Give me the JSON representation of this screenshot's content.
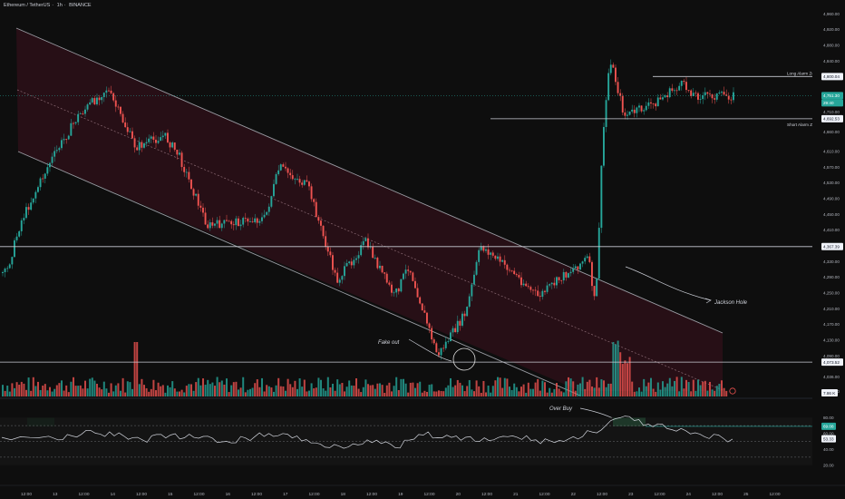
{
  "header": {
    "symbol": "Ethereum / TetherUS",
    "timeframe": "1h",
    "exchange": "BINANCE"
  },
  "colors": {
    "background": "#0e0e0e",
    "bull": "#26a69a",
    "bear": "#ef5350",
    "channel_fill": "#2a0f17",
    "line": "#c9ccd4",
    "rsi": "#d1d4dc",
    "rsi_fill": "#1f3b2b",
    "label_green": "#26a69a"
  },
  "price_axis": {
    "ticks": [
      "4,960.00",
      "4,920.00",
      "4,880.00",
      "4,840.00",
      "4,800.04",
      "4,751.30",
      "4,710.00",
      "4,692.53",
      "4,660.00",
      "4,610.00",
      "4,570.00",
      "4,530.00",
      "4,490.00",
      "4,450.00",
      "4,410.00",
      "4,367.39",
      "4,330.00",
      "4,290.00",
      "4,250.00",
      "4,210.00",
      "4,170.00",
      "4,130.00",
      "4,090.00",
      "4,073.52",
      "4,036.00",
      "4,000.00"
    ],
    "current_price": "4,751.30",
    "countdown": "29:40",
    "volume_label": "7.86 K"
  },
  "rsi_axis": {
    "ticks": [
      "80.00",
      "69.08",
      "60.00",
      "53.33",
      "40.00",
      "20.00"
    ]
  },
  "time_axis": [
    "12:00",
    "13",
    "12:00",
    "14",
    "12:00",
    "15",
    "12:00",
    "16",
    "12:00",
    "17",
    "12:00",
    "18",
    "12:00",
    "19",
    "12:00",
    "20",
    "12:00",
    "21",
    "12:00",
    "22",
    "12:00",
    "23",
    "12:00",
    "24",
    "12:00",
    "25",
    "12:00"
  ],
  "annotations": {
    "long_alarm": "Long Alarm Zone",
    "short_alarm": "Short Alarm Zone",
    "jackson_hole": "Jackson Hole",
    "fake_out": "Fake out",
    "over_buy": "Over Buy"
  },
  "chart_data": {
    "type": "candlestick",
    "symbol": "Ethereum / TetherUS",
    "interval": "1h",
    "exchange": "BINANCE",
    "y_range": [
      4000,
      4960
    ],
    "levels": [
      {
        "label": "Long Alarm Zone",
        "price": 4800.04
      },
      {
        "label": "Short Alarm Zone",
        "price": 4692.53
      },
      {
        "price": 4367.39
      },
      {
        "price": 4073.52
      }
    ],
    "last_price": 4751.3,
    "close_path": [
      {
        "t": "12 06:00",
        "close": 4300
      },
      {
        "t": "12 12:00",
        "close": 4430
      },
      {
        "t": "13 00:00",
        "close": 4580
      },
      {
        "t": "13 12:00",
        "close": 4700
      },
      {
        "t": "14 00:00",
        "close": 4770
      },
      {
        "t": "14 12:00",
        "close": 4620
      },
      {
        "t": "15 00:00",
        "close": 4650
      },
      {
        "t": "15 06:00",
        "close": 4600
      },
      {
        "t": "15 18:00",
        "close": 4420
      },
      {
        "t": "16 06:00",
        "close": 4430
      },
      {
        "t": "16 18:00",
        "close": 4440
      },
      {
        "t": "17 00:00",
        "close": 4570
      },
      {
        "t": "17 12:00",
        "close": 4520
      },
      {
        "t": "18 00:00",
        "close": 4280
      },
      {
        "t": "18 12:00",
        "close": 4380
      },
      {
        "t": "19 00:00",
        "close": 4240
      },
      {
        "t": "19 06:00",
        "close": 4320
      },
      {
        "t": "19 18:00",
        "close": 4090
      },
      {
        "t": "20 06:00",
        "close": 4200
      },
      {
        "t": "20 12:00",
        "close": 4370
      },
      {
        "t": "21 00:00",
        "close": 4310
      },
      {
        "t": "21 12:00",
        "close": 4240
      },
      {
        "t": "22 00:00",
        "close": 4300
      },
      {
        "t": "22 09:00",
        "close": 4340
      },
      {
        "t": "22 12:00",
        "close": 4210
      },
      {
        "t": "22 15:00",
        "close": 4640
      },
      {
        "t": "22 18:00",
        "close": 4850
      },
      {
        "t": "23 00:00",
        "close": 4700
      },
      {
        "t": "23 12:00",
        "close": 4730
      },
      {
        "t": "24 00:00",
        "close": 4780
      },
      {
        "t": "24 06:00",
        "close": 4751.3
      }
    ],
    "volume_last": "7.86 K",
    "rsi": {
      "range": [
        0,
        100
      ],
      "value": 53.33,
      "levels": [
        80,
        69.08,
        60,
        53.33,
        40,
        20
      ],
      "path": [
        [
          0,
          55
        ],
        [
          2,
          52
        ],
        [
          3,
          64
        ],
        [
          4,
          57
        ],
        [
          5,
          52
        ],
        [
          6,
          58
        ],
        [
          7,
          54
        ],
        [
          8,
          50
        ],
        [
          9,
          56
        ],
        [
          10,
          60
        ],
        [
          11,
          48
        ],
        [
          12,
          44
        ],
        [
          13,
          52
        ],
        [
          14,
          42
        ],
        [
          15,
          58
        ],
        [
          16,
          55
        ],
        [
          17,
          50
        ],
        [
          18,
          56
        ],
        [
          19,
          52
        ],
        [
          20,
          50
        ],
        [
          21,
          62
        ],
        [
          22,
          80
        ],
        [
          23,
          72
        ],
        [
          24,
          63
        ],
        [
          25,
          56
        ],
        [
          26,
          53
        ]
      ]
    }
  }
}
